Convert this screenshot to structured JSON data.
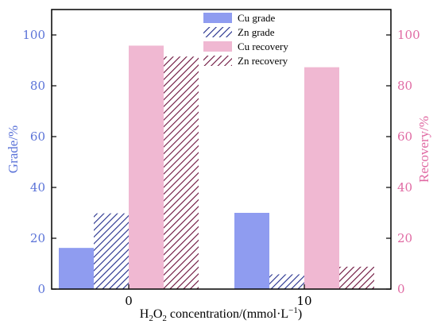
{
  "colors": {
    "left_axis": "#5b73d8",
    "right_axis": "#e06aa3",
    "cu_grade": "#8f9cf0",
    "zn_grade_hatch": "#1e2a8a",
    "cu_recovery": "#f0b8d2",
    "zn_recovery_hatch": "#6b0f3a"
  },
  "chart_data": {
    "type": "bar",
    "categories": [
      "0",
      "10"
    ],
    "series": [
      {
        "name": "Cu grade",
        "axis": "left",
        "style": "solid-blue",
        "values": [
          16.2,
          30.0
        ]
      },
      {
        "name": "Zn grade",
        "axis": "left",
        "style": "hatched-blue",
        "values": [
          29.8,
          5.8
        ]
      },
      {
        "name": "Cu recovery",
        "axis": "right",
        "style": "solid-pink",
        "values": [
          95.8,
          87.3
        ]
      },
      {
        "name": "Zn recovery",
        "axis": "right",
        "style": "hatched-pink",
        "values": [
          91.5,
          8.8
        ]
      }
    ],
    "ylabel_left": "Grade/%",
    "ylabel_right": "Recovery/%",
    "xlabel_parts": [
      "H",
      "2",
      "O",
      "2",
      " concentration/(mmol·L",
      "−1",
      ")"
    ],
    "ylim": [
      0,
      110
    ],
    "yticks": [
      0,
      20,
      40,
      60,
      80,
      100
    ],
    "legend_position": "top-center",
    "grid": false
  }
}
